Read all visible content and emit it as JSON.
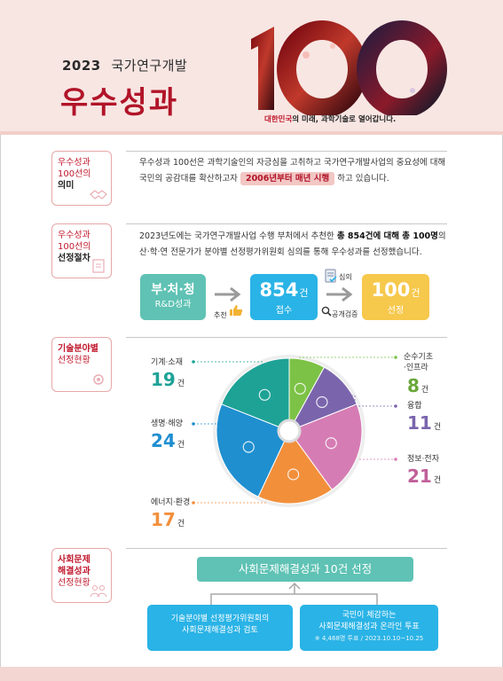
{
  "header": {
    "year": "2023",
    "subtitle": "국가연구개발",
    "title": "우수성과",
    "logo_text": "100",
    "slogan_highlight": "대한민국",
    "slogan_rest": "의 미래, 과학기술로 열어갑니다."
  },
  "sections": [
    {
      "line1": "우수성과",
      "line2": "100선의",
      "line3": "의미"
    },
    {
      "line1": "우수성과",
      "line2": "100선의",
      "line3": "선정절차"
    },
    {
      "line1": "기술분야별",
      "line2": "선정현황"
    },
    {
      "line1": "사회문제",
      "line2": "해결성과",
      "line3": "선정현황"
    }
  ],
  "meaning": {
    "text_a": "우수성과 100선은 과학기술인의 자긍심을 고취하고 국가연구개발사업의 중요성에 대해",
    "text_b": "국민의 공감대를 확산하고자",
    "highlight": "2006년부터 매년 시행",
    "text_c": "하고 있습니다."
  },
  "procedure": {
    "text_a": "2023년도에는 국가연구개발사업 수행 부처에서 추천한",
    "bold": "총 854건에 대해 총 100명",
    "text_b": "의",
    "text_c": "산·학·연 전문가가 분야별 선정평가위원회 심의를 통해 우수성과를 선정했습니다.",
    "step1_title": "부·처·청",
    "step1_sub": "R&D성과",
    "recommend_label": "추천",
    "step2_value": "854",
    "step2_unit": "건",
    "step2_sub": "접수",
    "review_label": "심의",
    "public_label": "공개검증",
    "step3_value": "100",
    "step3_unit": "건",
    "step3_sub": "선정"
  },
  "chart_data": {
    "type": "pie",
    "unit": "건",
    "categories": [
      "순수기초·인프라",
      "융합",
      "정보·전자",
      "에너지·환경",
      "생명·해양",
      "기계·소재"
    ],
    "values": [
      8,
      11,
      21,
      17,
      24,
      19
    ],
    "colors": [
      "#7cc246",
      "#7a65ad",
      "#d67cb4",
      "#f28f3b",
      "#1f8fd0",
      "#1ea296"
    ],
    "labels": {
      "pure": "순수기초",
      "pure2": "·인프라",
      "fusion": "융합",
      "info": "정보·전자",
      "energy": "에너지·환경",
      "bio": "생명·해양",
      "mech": "기계·소재"
    },
    "count_unit": "건"
  },
  "social": {
    "banner": "사회문제해결성과 10건 선정",
    "box1_l1": "기술분야별 선정평가위원회의",
    "box1_l2": "사회문제해결성과 검토",
    "box2_l1": "국민이 체감하는",
    "box2_l2": "사회문제해결성과 온라인 투표",
    "box2_note": "※ 4,468명 투표 / 2023.10.10~10.25"
  }
}
